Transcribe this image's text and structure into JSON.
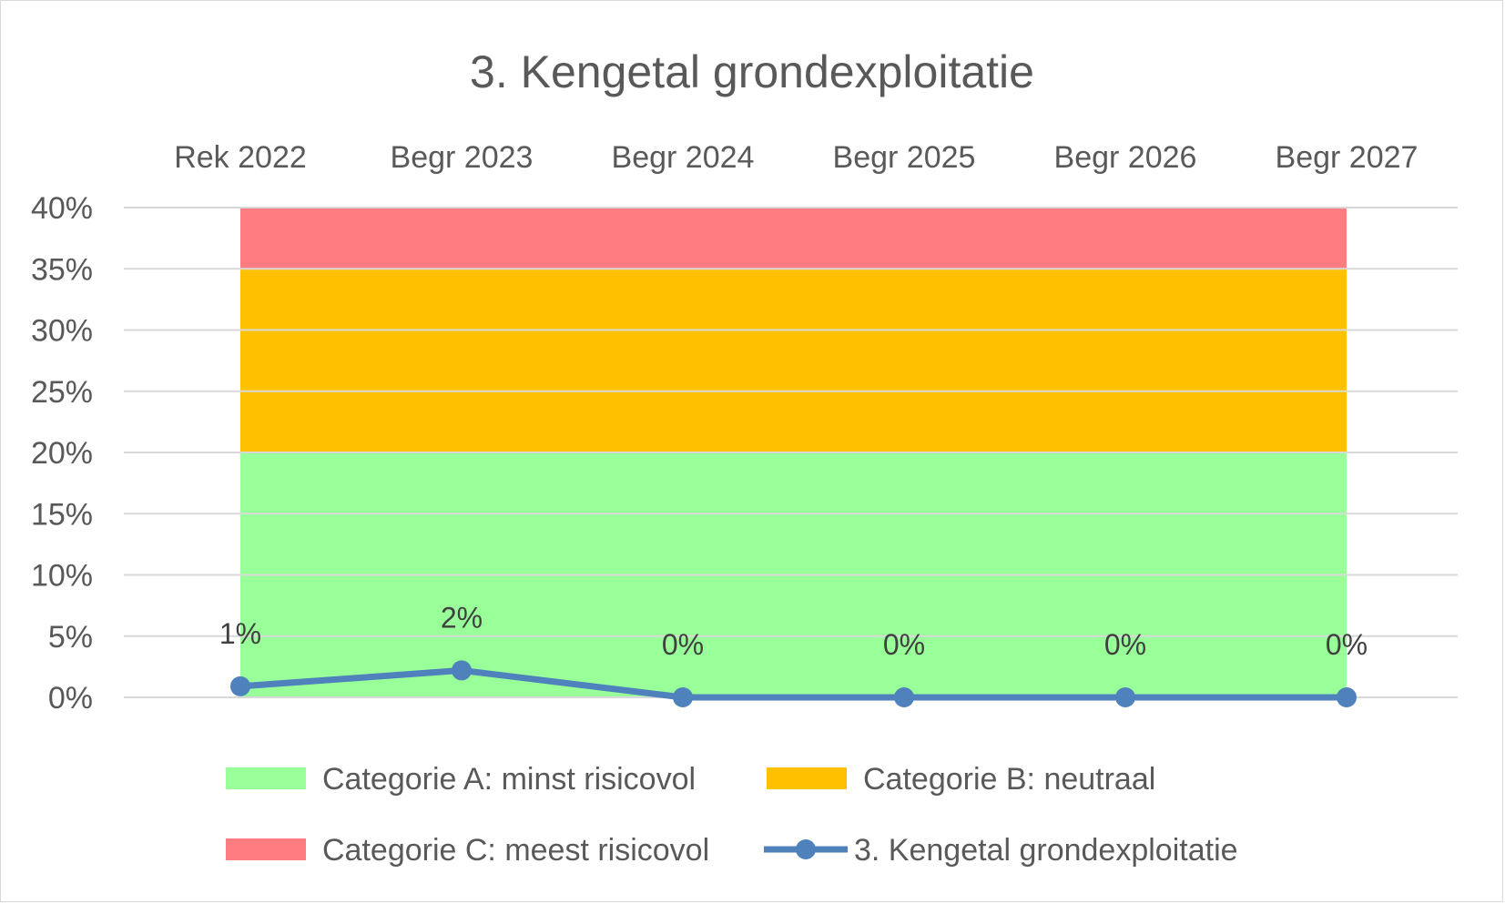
{
  "chart_data": {
    "type": "area",
    "title": "3. Kengetal grondexploitatie",
    "categories": [
      "Rek 2022",
      "Begr 2023",
      "Begr 2024",
      "Begr 2025",
      "Begr 2026",
      "Begr 2027"
    ],
    "ylim": [
      0,
      0.4
    ],
    "yticks": [
      0,
      0.05,
      0.1,
      0.15,
      0.2,
      0.25,
      0.3,
      0.35,
      0.4
    ],
    "ytick_labels": [
      "0%",
      "5%",
      "10%",
      "15%",
      "20%",
      "25%",
      "30%",
      "35%",
      "40%"
    ],
    "grid": true,
    "legend_position": "bottom",
    "bands": [
      {
        "name": "Categorie A: minst risicovol",
        "from": 0,
        "to": 0.2,
        "color": "#99ff99"
      },
      {
        "name": "Categorie B: neutraal",
        "from": 0.2,
        "to": 0.35,
        "color": "#ffc000"
      },
      {
        "name": "Categorie C: meest risicovol",
        "from": 0.35,
        "to": 0.4,
        "color": "#ff7c80"
      }
    ],
    "series": [
      {
        "name": "3. Kengetal grondexploitatie",
        "type": "line",
        "color": "#4f81bd",
        "values": [
          0.009,
          0.022,
          0.0,
          0.0,
          0.0,
          0.0
        ],
        "data_labels": [
          "1%",
          "2%",
          "0%",
          "0%",
          "0%",
          "0%"
        ]
      }
    ]
  }
}
